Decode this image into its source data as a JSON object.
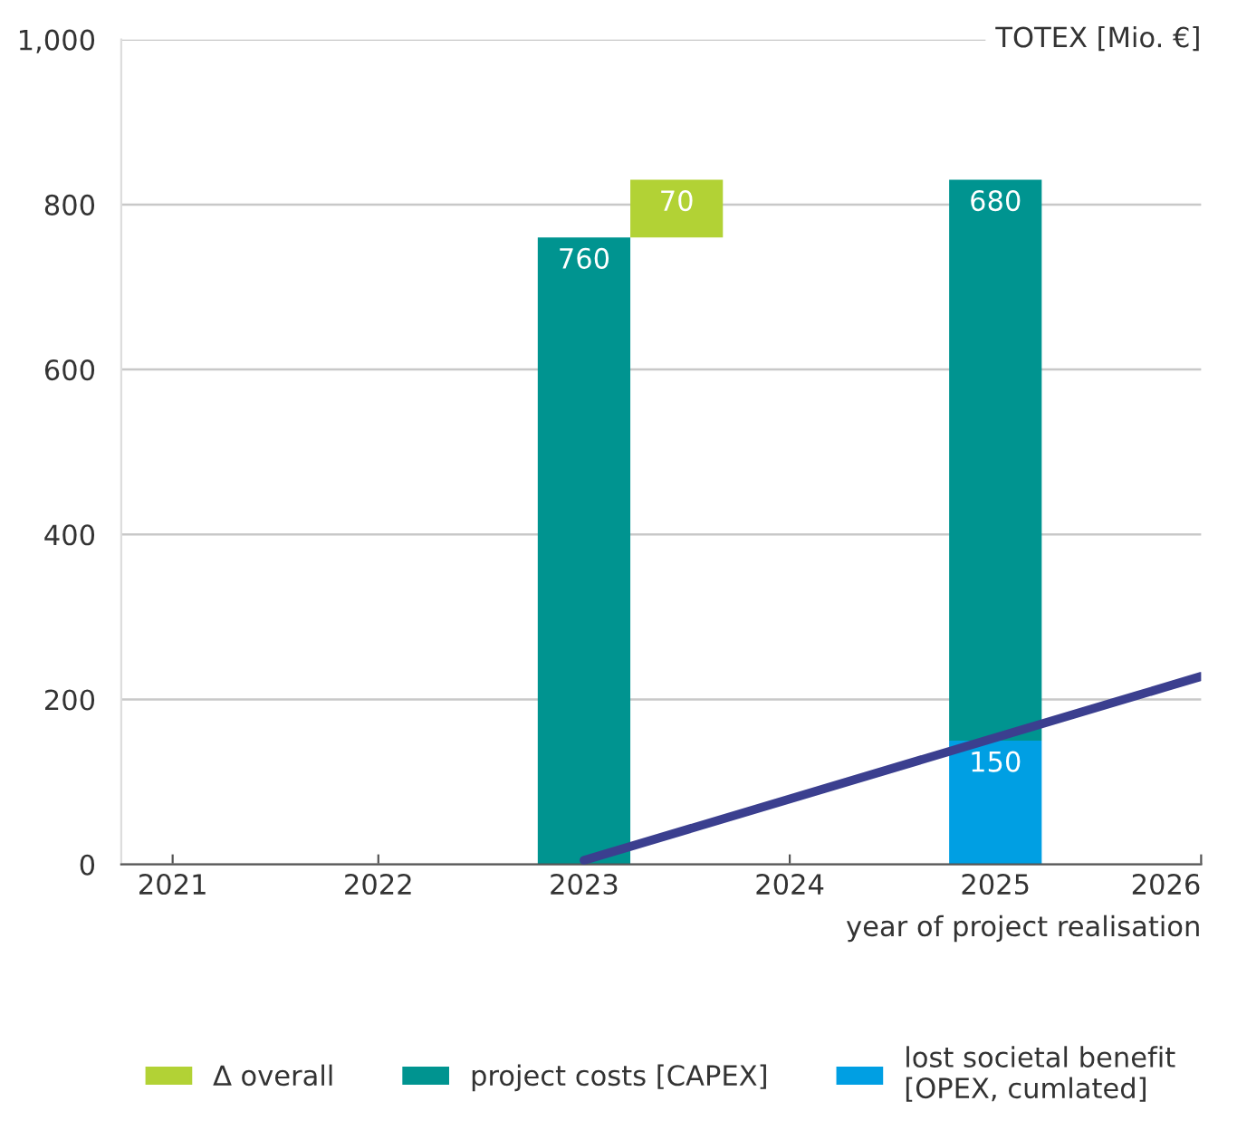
{
  "chart_data": {
    "type": "bar",
    "ylabel": "TOTEX [Mio. €]",
    "xlabel": "year of project realisation",
    "xlim": [
      2020.75,
      2026
    ],
    "xticks": [
      2021,
      2022,
      2023,
      2024,
      2025,
      2026
    ],
    "ylim": [
      0,
      1000
    ],
    "yticks": [
      0,
      200,
      400,
      600,
      800,
      {
        "value": 1000,
        "label": "1,000"
      }
    ],
    "grid": "y",
    "legend": "bottom",
    "series": [
      {
        "name": "∆ overall",
        "color": "#b2d235",
        "x": [
          2023.45
        ],
        "base": [
          760
        ],
        "values": [
          70
        ],
        "value_labels": [
          "70"
        ]
      },
      {
        "name": "project costs [CAPEX]",
        "color": "#009490",
        "x": [
          2023,
          2025
        ],
        "base": [
          0,
          150
        ],
        "values": [
          760,
          680
        ],
        "value_labels": [
          "760",
          "680"
        ]
      },
      {
        "name": "lost societal benefit\n[OPEX, cumlated]",
        "color": "#009fe3",
        "x": [
          2025
        ],
        "base": [
          0
        ],
        "values": [
          150
        ],
        "value_labels": [
          "150"
        ]
      },
      {
        "type": "line",
        "color": "#3b3f8f",
        "x": [
          2023,
          2026
        ],
        "values": [
          5,
          228
        ]
      }
    ]
  }
}
